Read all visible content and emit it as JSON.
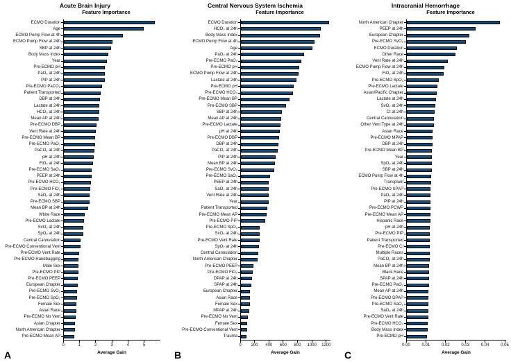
{
  "chart_data": [
    {
      "type": "bar",
      "orientation": "horizontal",
      "panel_letter": "A",
      "title": "Acute Brain Injury",
      "subtitle": "Feature Importance",
      "xlabel": "Average Gain",
      "bar_color": "#14456E",
      "axis_color": "#000000",
      "grid": false,
      "legend": false,
      "xlim": [
        0,
        6.0
      ],
      "xticks": [
        0,
        1,
        2,
        3,
        4,
        5
      ],
      "xtick_labels": [
        "0",
        "1",
        "2",
        "3",
        "4",
        "5"
      ],
      "categories": [
        "ECMO Duration",
        "Age",
        "ECMO Pump Flow at 4h",
        "ECMO Pump Flow at 24h",
        "SBP at 24h",
        "Body Mass Index",
        "Year",
        "Pre-ECMO pH",
        "PaO₂ at 24h",
        "PIP at 24h",
        "Pre-ECMO PaCO₂",
        "Patient Transported",
        "DBP at 24h",
        "Lactate at 24h",
        "HCO₃ at 24h",
        "Mean AP at 24h",
        "Pre-ECMO DBP",
        "Vent Rate at 24h",
        "Pre-ECMO Mean BP",
        "Pre-ECMO PaO₂",
        "PaCO₂ at 24h",
        "pH at 24h",
        "FiO₂ at 24h",
        "Pre-ECMO SaO₂",
        "PEEP at 24h",
        "Pre-ECMO HCO₃",
        "Pre-ECMO FiO₂",
        "SaO₂ at 24h",
        "Pre-ECMO SBP",
        "Mean BP at 24h",
        "White Race",
        "Pre-ECMO Lactate",
        "SvO₂ at 24h",
        "SpO₂ at 24h",
        "Central Cannulation",
        "Pre-ECMO Conventional Vent",
        "Pre-ECMO Vent Rate",
        "Pre-ECMO Handbagging",
        "Male Sex",
        "Pre-ECMO PIP",
        "Pre-ECMO PEEP",
        "European Chapter",
        "Pre-ECMO SvO₂",
        "Pre-ECMO SpO₂",
        "Female Sex",
        "Asian Race",
        "Pre-ECMO No Vent",
        "Asian Chapter",
        "North American Chapter",
        "Pre-ECMO Mean AP"
      ],
      "values": [
        5.7,
        5.0,
        3.7,
        3.05,
        2.95,
        2.8,
        2.7,
        2.57,
        2.56,
        2.55,
        2.4,
        2.3,
        2.26,
        2.23,
        2.2,
        2.16,
        2.04,
        2.0,
        1.95,
        1.94,
        1.93,
        1.86,
        1.84,
        1.73,
        1.72,
        1.7,
        1.64,
        1.63,
        1.62,
        1.5,
        1.3,
        1.26,
        1.21,
        1.2,
        1.06,
        1.03,
        0.96,
        0.93,
        0.92,
        0.91,
        0.86,
        0.85,
        0.84,
        0.81,
        0.8,
        0.78,
        0.75,
        0.7,
        0.68,
        0.67
      ]
    },
    {
      "type": "bar",
      "orientation": "horizontal",
      "panel_letter": "B",
      "title": "Central Nervous System Ischemia",
      "subtitle": "Feature Importance",
      "xlabel": "Average Gain",
      "bar_color": "#14456E",
      "axis_color": "#000000",
      "grid": false,
      "legend": false,
      "xlim": [
        0,
        1260
      ],
      "xticks": [
        0,
        200,
        400,
        600,
        800,
        1000,
        1200
      ],
      "xtick_labels": [
        "0",
        "200",
        "400",
        "600",
        "800",
        "1000",
        "1200"
      ],
      "categories": [
        "ECMO Duration",
        "HCO₃ at 24h",
        "Body Mass Index",
        "ECMO Pump Flow at 4h",
        "Age",
        "PaO₂ at 24h",
        "Pre-ECMO PaO₂",
        "Pre-ECMO pH",
        "ECMO Pump Flow at 24h",
        "Lactate at 24h",
        "Pre-ECMO pH",
        "Pre-ECMO HCO₃",
        "Pre-ECMO Mean BP",
        "Pre-ECMO SBP",
        "SBP at 24h",
        "Mean AP at 24h",
        "Pre-ECMO Lactate",
        "pH at 24h",
        "Pre-ECMO DBP",
        "DBP at 24h",
        "PaCO₂ at 24h",
        "PIP at 24h",
        "Mean BP at 24h",
        "Pre-ECMO SvO₂",
        "Pre-ECMO SaO₂",
        "PEEP at 24h",
        "SaO₂ at 24h",
        "Vent Rate at 24h",
        "Year",
        "Patient Transported",
        "Pre-ECMO Mean AP",
        "Pre-ECMO PIP",
        "Pre-ECMO SpO₂",
        "SvO₂ at 24h",
        "Pre-ECMO Vent Rate",
        "SpO₂ at 24h",
        "Central Cannulation",
        "North American Chapter",
        "Pre-ECMO PEEP",
        "Pre-ECMO FiO₂",
        "DPAP at 24h",
        "SPAP at 24h",
        "European Chapter",
        "Asian Race",
        "Female Sex",
        "MPAP at 24h",
        "Pre-ECMO No Vent",
        "Female Sex",
        "Pre-ECMO Conventional Vent",
        "Trauma"
      ],
      "values": [
        1255,
        1135,
        1120,
        1045,
        1010,
        900,
        860,
        830,
        820,
        785,
        752,
        740,
        690,
        638,
        576,
        573,
        560,
        556,
        546,
        528,
        518,
        490,
        478,
        468,
        410,
        398,
        394,
        392,
        390,
        374,
        362,
        340,
        266,
        264,
        261,
        258,
        242,
        238,
        178,
        172,
        160,
        150,
        131,
        128,
        127,
        121,
        101,
        89,
        88,
        78
      ]
    },
    {
      "type": "bar",
      "orientation": "horizontal",
      "panel_letter": "C",
      "title": "Intracranial Hemorrhage",
      "subtitle": "Feature Importance",
      "xlabel": "Average Gain",
      "bar_color": "#14456E",
      "axis_color": "#000000",
      "grid": false,
      "legend": false,
      "xlim": [
        0,
        0.0507
      ],
      "xticks": [
        0,
        0.01,
        0.02,
        0.03,
        0.04,
        0.05
      ],
      "xtick_labels": [
        "0.00",
        "0.01",
        "0.02",
        "0.03",
        "0.04",
        "0.05"
      ],
      "categories": [
        "North American Chapter",
        "PEEP at 24h",
        "European Chapter",
        "Pre-ECMO SvO₂",
        "ECMO Duration",
        "Other Race",
        "Vent Rate at 24h",
        "ECMO Pump Flow at 24h",
        "FiO₂ at 24h",
        "Pre-ECMO SpO₂",
        "Pre-ECMO Lactate",
        "Asian/Pacific Chapter",
        "Lactate at 24h",
        "SvO₂ at 24h",
        "CI at 24h",
        "Central Cannulation",
        "Other Vent Type at 24h",
        "Asian Race",
        "Pre-ECMO MPAP",
        "DBP at 24h",
        "Pre-ECMO Mean BP",
        "Year",
        "SpO₂ at 24h",
        "SBP at 24h",
        "ECMO Pump Flow at 4h",
        "Transplant",
        "Pre-ECMO SPAP",
        "PaO₂ at 24h",
        "PIP at 24h",
        "Pre-ECMO PCWP",
        "Pre-ECMO Mean AP",
        "Hispanic Race",
        "pH at 24h",
        "Pre-ECMO PIP",
        "Patient Transported",
        "Pre-ECMO CI",
        "Multiple Races",
        "PaCO₂ at 24h",
        "Mean BP at 24h",
        "Black Race",
        "SPAP at 24h",
        "Pre-ECMO PaO₂",
        "Mean AP at 24h",
        "Pre-ECMO DPAP",
        "Pre-ECMO SaO₂",
        "SaO₂ at 24h",
        "Pre-ECMO Vent Rate",
        "Pre-ECMO HCO₃",
        "Body Mass Index",
        "Pre-ECMO pH"
      ],
      "values": [
        0.048,
        0.0354,
        0.032,
        0.0305,
        0.0257,
        0.025,
        0.0212,
        0.0193,
        0.019,
        0.0165,
        0.0156,
        0.0154,
        0.0151,
        0.0146,
        0.0144,
        0.0139,
        0.0138,
        0.0133,
        0.0132,
        0.0132,
        0.013,
        0.0129,
        0.0129,
        0.0128,
        0.0126,
        0.0125,
        0.0123,
        0.0122,
        0.0122,
        0.0121,
        0.0121,
        0.012,
        0.0118,
        0.0118,
        0.0118,
        0.0117,
        0.0117,
        0.0117,
        0.0116,
        0.0115,
        0.0114,
        0.0113,
        0.0111,
        0.011,
        0.011,
        0.0109,
        0.0109,
        0.0108,
        0.0106,
        0.0105
      ]
    }
  ]
}
